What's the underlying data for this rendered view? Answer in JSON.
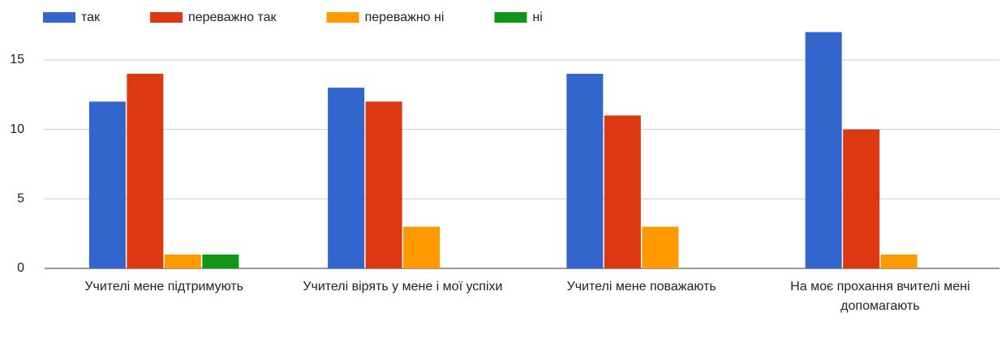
{
  "chart_data": {
    "type": "bar",
    "categories": [
      "Учителі мене підтримують",
      "Учителі вірять у мене і мої успіхи",
      "Учителі мене поважають",
      "На моє прохання вчителі мені допомагають"
    ],
    "series": [
      {
        "name": "так",
        "color": "#3366cc",
        "values": [
          12,
          13,
          14,
          17
        ]
      },
      {
        "name": "переважно так",
        "color": "#dc3912",
        "values": [
          14,
          12,
          11,
          10
        ]
      },
      {
        "name": "переважно ні",
        "color": "#ff9900",
        "values": [
          1,
          3,
          3,
          1
        ]
      },
      {
        "name": "ні",
        "color": "#109618",
        "values": [
          1,
          0,
          0,
          0
        ]
      }
    ],
    "ylim": [
      0,
      17.5
    ],
    "yticks": [
      0,
      5,
      10,
      15
    ],
    "grid": true,
    "legend": "top"
  }
}
